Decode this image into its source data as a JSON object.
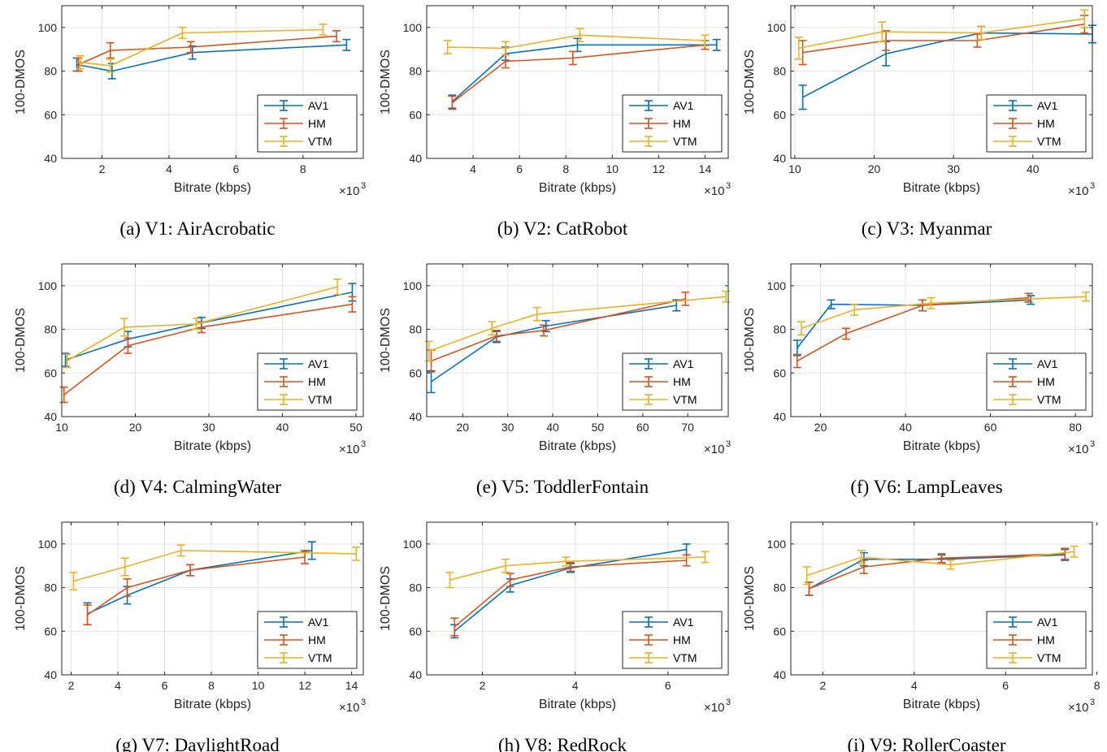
{
  "colors": {
    "AV1": "#0072BD",
    "HM": "#D95319",
    "VTM": "#EDB120"
  },
  "chart_data": [
    {
      "type": "line",
      "caption": "(a) V1: AirAcrobatic",
      "xlabel": "Bitrate (kbps)",
      "ylabel": "100-DMOS",
      "x_multiplier": "×10",
      "x_multiplier_exp": "3",
      "xlim": [
        0.8,
        9.8
      ],
      "ylim": [
        40,
        110
      ],
      "xticks": [
        2,
        4,
        6,
        8
      ],
      "yticks": [
        40,
        60,
        80,
        100
      ],
      "legend": [
        "AV1",
        "HM",
        "VTM"
      ],
      "grid": true,
      "series": [
        {
          "name": "AV1",
          "x": [
            1.25,
            2.3,
            4.7,
            9.3
          ],
          "y": [
            83,
            80,
            88.5,
            92
          ],
          "err": [
            3,
            3.5,
            3,
            2.5
          ]
        },
        {
          "name": "HM",
          "x": [
            1.3,
            2.25,
            4.65,
            9.0
          ],
          "y": [
            83,
            89.5,
            91,
            96
          ],
          "err": [
            3,
            3.5,
            2.5,
            2.5
          ]
        },
        {
          "name": "VTM",
          "x": [
            1.35,
            2.25,
            4.4,
            8.6
          ],
          "y": [
            84,
            82.5,
            97.5,
            99
          ],
          "err": [
            3,
            3,
            2.5,
            2.5
          ]
        }
      ]
    },
    {
      "type": "line",
      "caption": "(b) V2: CatRobot",
      "xlabel": "Bitrate (kbps)",
      "ylabel": "100-DMOS",
      "x_multiplier": "×10",
      "x_multiplier_exp": "3",
      "xlim": [
        2,
        15
      ],
      "ylim": [
        40,
        110
      ],
      "xticks": [
        4,
        6,
        8,
        10,
        12,
        14
      ],
      "yticks": [
        40,
        60,
        80,
        100
      ],
      "legend": [
        "AV1",
        "HM",
        "VTM"
      ],
      "grid": true,
      "series": [
        {
          "name": "AV1",
          "x": [
            3.1,
            5.4,
            8.5,
            14.5
          ],
          "y": [
            66,
            88,
            92,
            92
          ],
          "err": [
            3,
            3,
            3,
            2.5
          ]
        },
        {
          "name": "HM",
          "x": [
            3.1,
            5.4,
            8.3,
            14.0
          ],
          "y": [
            65.5,
            84.5,
            86,
            92
          ],
          "err": [
            3,
            3,
            3,
            2
          ]
        },
        {
          "name": "VTM",
          "x": [
            2.9,
            5.4,
            8.6,
            14.0
          ],
          "y": [
            91,
            90.5,
            96.5,
            94
          ],
          "err": [
            3,
            3,
            3,
            2.5
          ]
        }
      ]
    },
    {
      "type": "line",
      "caption": "(c) V3: Myanmar",
      "xlabel": "Bitrate (kbps)",
      "ylabel": "100-DMOS",
      "x_multiplier": "×10",
      "x_multiplier_exp": "3",
      "xlim": [
        9.5,
        47.5
      ],
      "ylim": [
        40,
        110
      ],
      "xticks": [
        10,
        20,
        30,
        40
      ],
      "yticks": [
        40,
        60,
        80,
        100
      ],
      "legend": [
        "AV1",
        "HM",
        "VTM"
      ],
      "grid": true,
      "series": [
        {
          "name": "AV1",
          "x": [
            11,
            21.5,
            33.5,
            47.5
          ],
          "y": [
            68,
            88,
            97.5,
            97
          ],
          "err": [
            5.5,
            5.5,
            3,
            4
          ]
        },
        {
          "name": "HM",
          "x": [
            11,
            21.5,
            33,
            46.5
          ],
          "y": [
            88.5,
            94,
            94,
            101.5
          ],
          "err": [
            5.5,
            4.5,
            3,
            4
          ]
        },
        {
          "name": "VTM",
          "x": [
            10.5,
            21,
            33.5,
            46.5
          ],
          "y": [
            90.5,
            98,
            97.5,
            104
          ],
          "err": [
            5,
            4.5,
            3,
            4
          ]
        }
      ]
    },
    {
      "type": "line",
      "caption": "(d) V4: CalmingWater",
      "xlabel": "Bitrate (kbps)",
      "ylabel": "100-DMOS",
      "x_multiplier": "×10",
      "x_multiplier_exp": "3",
      "xlim": [
        10,
        51
      ],
      "ylim": [
        40,
        110
      ],
      "xticks": [
        10,
        20,
        30,
        40,
        50
      ],
      "yticks": [
        40,
        60,
        80,
        100
      ],
      "legend": [
        "AV1",
        "HM",
        "VTM"
      ],
      "grid": true,
      "series": [
        {
          "name": "AV1",
          "x": [
            10.5,
            19,
            29,
            49.5
          ],
          "y": [
            66,
            75.5,
            83,
            97
          ],
          "err": [
            3,
            3.5,
            2.5,
            4
          ]
        },
        {
          "name": "HM",
          "x": [
            10.3,
            19,
            29,
            49.5
          ],
          "y": [
            50,
            72.5,
            81,
            91.5
          ],
          "err": [
            3.5,
            3.5,
            2.5,
            3.5
          ]
        },
        {
          "name": "VTM",
          "x": [
            10.7,
            18.5,
            28.3,
            47.5
          ],
          "y": [
            65.5,
            81,
            82.5,
            99.5
          ],
          "err": [
            3,
            4,
            2.5,
            3.5
          ]
        }
      ]
    },
    {
      "type": "line",
      "caption": "(e) V5: ToddlerFontain",
      "xlabel": "Bitrate (kbps)",
      "ylabel": "100-DMOS",
      "x_multiplier": "×10",
      "x_multiplier_exp": "3",
      "xlim": [
        12,
        79
      ],
      "ylim": [
        40,
        110
      ],
      "xticks": [
        20,
        30,
        40,
        50,
        60,
        70
      ],
      "yticks": [
        40,
        60,
        80,
        100
      ],
      "legend": [
        "AV1",
        "HM",
        "VTM"
      ],
      "grid": true,
      "series": [
        {
          "name": "AV1",
          "x": [
            13,
            27.5,
            38.5,
            67.5
          ],
          "y": [
            56,
            76.5,
            81.5,
            91
          ],
          "err": [
            5,
            2.5,
            2.5,
            2.5
          ]
        },
        {
          "name": "HM",
          "x": [
            13,
            27.5,
            38,
            69.5
          ],
          "y": [
            65.5,
            77,
            79.5,
            94
          ],
          "err": [
            5,
            2.5,
            2.5,
            3
          ]
        },
        {
          "name": "VTM",
          "x": [
            12.5,
            26.5,
            36.5,
            78.5
          ],
          "y": [
            70,
            80.5,
            87,
            95
          ],
          "err": [
            4.5,
            3,
            3,
            2.5
          ]
        }
      ]
    },
    {
      "type": "line",
      "caption": "(f) V6: LampLeaves",
      "xlabel": "Bitrate (kbps)",
      "ylabel": "100-DMOS",
      "x_multiplier": "×10",
      "x_multiplier_exp": "3",
      "xlim": [
        13,
        84
      ],
      "ylim": [
        40,
        110
      ],
      "xticks": [
        20,
        40,
        60,
        80
      ],
      "yticks": [
        40,
        60,
        80,
        100
      ],
      "legend": [
        "AV1",
        "HM",
        "VTM"
      ],
      "grid": true,
      "series": [
        {
          "name": "AV1",
          "x": [
            14.5,
            22.5,
            44,
            69.5
          ],
          "y": [
            71.5,
            91.5,
            91,
            93.5
          ],
          "err": [
            3.5,
            2,
            2.5,
            2
          ]
        },
        {
          "name": "HM",
          "x": [
            14.5,
            26,
            44,
            69
          ],
          "y": [
            65.5,
            78,
            91,
            94.5
          ],
          "err": [
            3,
            2.5,
            2.5,
            2
          ]
        },
        {
          "name": "VTM",
          "x": [
            15.5,
            28,
            46,
            82.5
          ],
          "y": [
            80.5,
            89,
            92,
            95
          ],
          "err": [
            3,
            2.5,
            2.5,
            2
          ]
        }
      ]
    },
    {
      "type": "line",
      "caption": "(g) V7: DaylightRoad",
      "xlabel": "Bitrate (kbps)",
      "ylabel": "100-DMOS",
      "x_multiplier": "×10",
      "x_multiplier_exp": "3",
      "xlim": [
        1.6,
        14.5
      ],
      "ylim": [
        40,
        110
      ],
      "xticks": [
        2,
        4,
        6,
        8,
        10,
        12,
        14
      ],
      "yticks": [
        40,
        60,
        80,
        100
      ],
      "legend": [
        "AV1",
        "HM",
        "VTM"
      ],
      "grid": true,
      "series": [
        {
          "name": "AV1",
          "x": [
            2.7,
            4.4,
            7.1,
            12.3
          ],
          "y": [
            68,
            76.5,
            88,
            97
          ],
          "err": [
            5,
            4,
            2.5,
            4
          ]
        },
        {
          "name": "HM",
          "x": [
            2.7,
            4.4,
            7.1,
            12.0
          ],
          "y": [
            67.5,
            80,
            88,
            94
          ],
          "err": [
            4.5,
            4,
            2.5,
            3
          ]
        },
        {
          "name": "VTM",
          "x": [
            2.1,
            4.3,
            6.7,
            14.2
          ],
          "y": [
            83,
            89.5,
            97,
            95.5
          ],
          "err": [
            4,
            4,
            2.5,
            3
          ]
        }
      ]
    },
    {
      "type": "line",
      "caption": "(h) V8: RedRock",
      "xlabel": "Bitrate (kbps)",
      "ylabel": "100-DMOS",
      "x_multiplier": "×10",
      "x_multiplier_exp": "3",
      "xlim": [
        0.8,
        7.3
      ],
      "ylim": [
        40,
        110
      ],
      "xticks": [
        2,
        4,
        6
      ],
      "yticks": [
        40,
        60,
        80,
        100
      ],
      "legend": [
        "AV1",
        "HM",
        "VTM"
      ],
      "grid": true,
      "series": [
        {
          "name": "AV1",
          "x": [
            1.4,
            2.6,
            3.9,
            6.4
          ],
          "y": [
            60,
            81,
            89,
            97.5
          ],
          "err": [
            3,
            3,
            2,
            2.5
          ]
        },
        {
          "name": "HM",
          "x": [
            1.4,
            2.6,
            3.9,
            6.4
          ],
          "y": [
            62,
            83.5,
            89.5,
            92.5
          ],
          "err": [
            4,
            3,
            2,
            2.5
          ]
        },
        {
          "name": "VTM",
          "x": [
            1.3,
            2.5,
            3.8,
            6.8
          ],
          "y": [
            83.5,
            90,
            92,
            94
          ],
          "err": [
            3.5,
            3,
            2,
            2.5
          ]
        }
      ]
    },
    {
      "type": "line",
      "caption": "(i) V9: RollerCoaster",
      "xlabel": "Bitrate (kbps)",
      "ylabel": "100-DMOS",
      "x_multiplier": "×10",
      "x_multiplier_exp": "3",
      "xlim": [
        1.3,
        7.9
      ],
      "ylim": [
        40,
        110
      ],
      "xticks": [
        2,
        4,
        6,
        8
      ],
      "yticks": [
        40,
        60,
        80,
        100
      ],
      "legend": [
        "AV1",
        "HM",
        "VTM"
      ],
      "grid": true,
      "series": [
        {
          "name": "AV1",
          "x": [
            1.7,
            2.9,
            4.6,
            7.3
          ],
          "y": [
            79.5,
            93,
            93,
            95
          ],
          "err": [
            3,
            3,
            2,
            2.5
          ]
        },
        {
          "name": "HM",
          "x": [
            1.7,
            2.9,
            4.6,
            7.3
          ],
          "y": [
            79.5,
            89.5,
            93.5,
            95.5
          ],
          "err": [
            3,
            3,
            2,
            2.5
          ]
        },
        {
          "name": "VTM",
          "x": [
            1.65,
            2.85,
            4.8,
            7.5
          ],
          "y": [
            85.5,
            94,
            90.5,
            96.5
          ],
          "err": [
            4,
            3,
            2,
            2.5
          ]
        }
      ]
    }
  ]
}
